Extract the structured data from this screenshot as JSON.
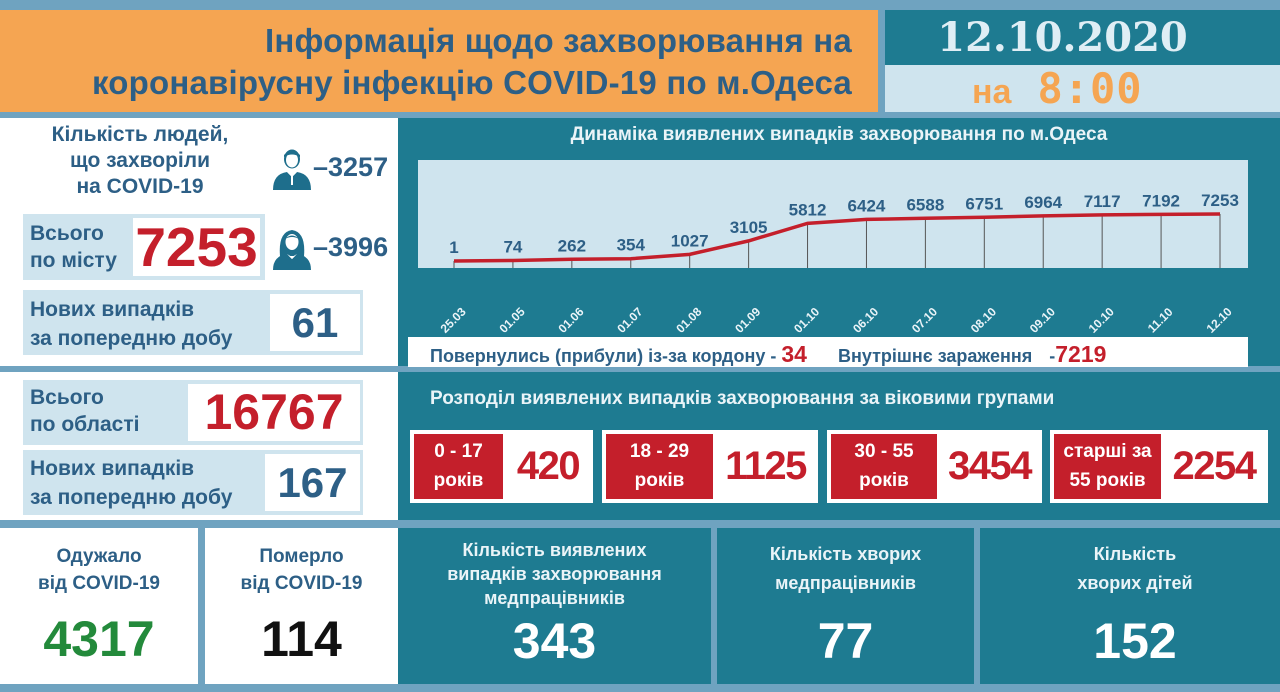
{
  "header": {
    "title_line1": "Інформація щодо захворювання на",
    "title_line2": "коронавірусну інфекцію COVID-19 по м.Одеса",
    "date": "12.10.2020",
    "time_prefix": "на",
    "time": "8:00"
  },
  "city": {
    "sick_title_line1": "Кількість людей,",
    "sick_title_line2": "що захворіли",
    "sick_title_line3": "на COVID-19",
    "male_icon": "male-person-icon",
    "male_count": "–3257",
    "female_icon": "female-person-icon",
    "female_count": "–3996",
    "total_label_line1": "Всього",
    "total_label_line2": "по місту",
    "total_value": "7253",
    "new_label_line1": "Нових випадків",
    "new_label_line2": "за попередню добу",
    "new_value": "61"
  },
  "region": {
    "total_label_line1": "Всього",
    "total_label_line2": "по області",
    "total_value": "16767",
    "new_label_line1": "Нових випадків",
    "new_label_line2": "за попередню добу",
    "new_value": "167"
  },
  "chart_data": {
    "type": "line",
    "title": "Динаміка виявлених випадків захворювання по м.Одеса",
    "categories": [
      "25.03",
      "01.05",
      "01.06",
      "01.07",
      "01.08",
      "01.09",
      "01.10",
      "06.10",
      "07.10",
      "08.10",
      "09.10",
      "10.10",
      "11.10",
      "12.10"
    ],
    "values": [
      1,
      74,
      262,
      354,
      1027,
      3105,
      5812,
      6424,
      6588,
      6751,
      6964,
      7117,
      7192,
      7253
    ],
    "xlabel": "",
    "ylabel": "",
    "grid": false,
    "data_labels": true,
    "line_color": "#c41f2b"
  },
  "chart_footer": {
    "border_label": "Повернулись (прибули) із-за кордону -",
    "border_value": "34",
    "internal_label": "Внутрішнє зараження",
    "internal_prefix": "-",
    "internal_value": "7219"
  },
  "age": {
    "title": "Розподіл виявлених випадків захворювання за віковими групами",
    "groups": [
      {
        "line1": "0 - 17",
        "line2": "років",
        "value": "420"
      },
      {
        "line1": "18 - 29",
        "line2": "років",
        "value": "1125"
      },
      {
        "line1": "30 - 55",
        "line2": "років",
        "value": "3454"
      },
      {
        "line1": "старші за",
        "line2": "55 років",
        "value": "2254"
      }
    ]
  },
  "bottom": {
    "recovered": {
      "line1": "Одужало",
      "line2": "від COVID-19",
      "value": "4317",
      "color": "#238a3b"
    },
    "died": {
      "line1": "Померло",
      "line2": "від COVID-19",
      "value": "114",
      "color": "#111111"
    },
    "medics_detected": {
      "line1": "Кількість виявлених",
      "line2": "випадків захворювання",
      "line3": "медпрацівників",
      "value": "343"
    },
    "medics_sick": {
      "line1": "Кількість хворих",
      "line2": "медпрацівників",
      "value": "77"
    },
    "children_sick": {
      "line1": "Кількість",
      "line2": "хворих дітей",
      "value": "152"
    }
  }
}
